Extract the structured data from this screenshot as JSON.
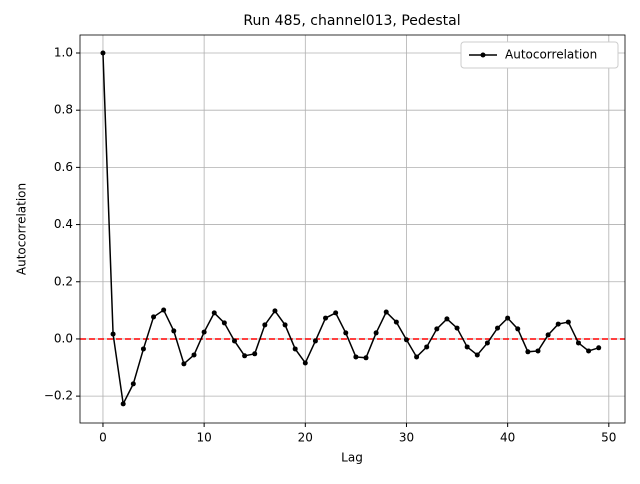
{
  "chart_data": {
    "type": "line",
    "title": "Run 485, channel013, Pedestal",
    "xlabel": "Lag",
    "ylabel": "Autocorrelation",
    "x": [
      0,
      1,
      2,
      3,
      4,
      5,
      6,
      7,
      8,
      9,
      10,
      11,
      12,
      13,
      14,
      15,
      16,
      17,
      18,
      19,
      20,
      21,
      22,
      23,
      24,
      25,
      26,
      27,
      28,
      29,
      30,
      31,
      32,
      33,
      34,
      35,
      36,
      37,
      38,
      39,
      40,
      41,
      42,
      43,
      44,
      45,
      46,
      47,
      48,
      49
    ],
    "series": [
      {
        "name": "Autocorrelation",
        "color": "#000000",
        "values": [
          1.0,
          0.017,
          -0.227,
          -0.157,
          -0.035,
          0.077,
          0.101,
          0.028,
          -0.087,
          -0.056,
          0.024,
          0.091,
          0.056,
          -0.007,
          -0.059,
          -0.052,
          0.049,
          0.098,
          0.049,
          -0.035,
          -0.084,
          -0.007,
          0.073,
          0.091,
          0.021,
          -0.063,
          -0.066,
          0.021,
          0.094,
          0.059,
          -0.003,
          -0.063,
          -0.028,
          0.035,
          0.07,
          0.038,
          -0.028,
          -0.056,
          -0.014,
          0.038,
          0.073,
          0.035,
          -0.045,
          -0.042,
          0.014,
          0.052,
          0.059,
          -0.014,
          -0.042,
          -0.031
        ]
      }
    ],
    "hline": {
      "value": 0,
      "color": "#ff0000"
    },
    "xlim": [
      -2.27,
      51.6
    ],
    "ylim": [
      -0.294,
      1.063
    ],
    "xticks": [
      0,
      10,
      20,
      30,
      40,
      50
    ],
    "yticks": [
      {
        "value": -0.2,
        "label": "−0.2"
      },
      {
        "value": 0,
        "label": "0.0"
      },
      {
        "value": 0.2,
        "label": "0.2"
      },
      {
        "value": 0.4,
        "label": "0.4"
      },
      {
        "value": 0.6,
        "label": "0.6"
      },
      {
        "value": 0.8,
        "label": "0.8"
      },
      {
        "value": 1.0,
        "label": "1.0"
      }
    ],
    "grid": true,
    "legend": "upper right"
  }
}
